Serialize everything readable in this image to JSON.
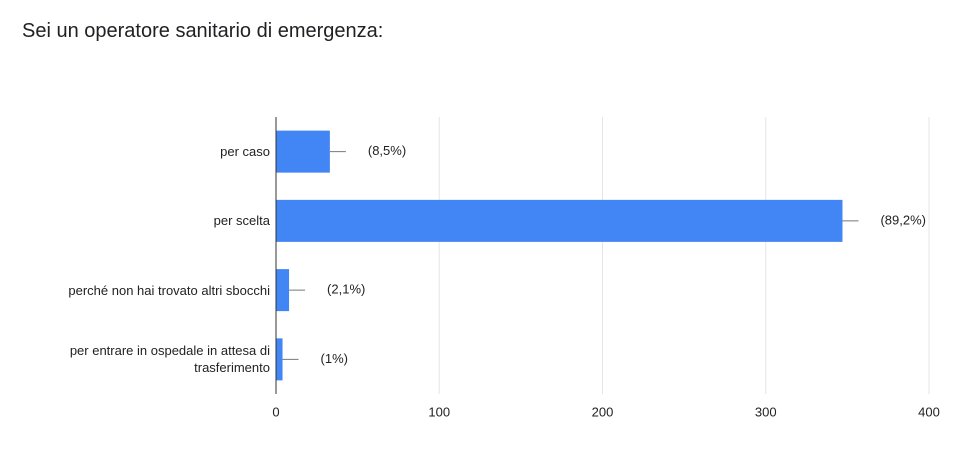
{
  "chart_data": {
    "type": "hbar",
    "title": "Sei un operatore sanitario di emergenza:",
    "categories": [
      "per caso",
      "per scelta",
      "perché non hai trovato altri sbocchi",
      "per entrare in ospedale in attesa di trasferimento"
    ],
    "values": [
      33,
      347,
      8,
      4
    ],
    "shares": [
      8.5,
      89.2,
      2.1,
      1
    ],
    "share_labels": [
      "(8,5%)",
      "(89,2%)",
      "(2,1%)",
      "(1%)"
    ],
    "color": "#4285f4",
    "xlim": [
      0,
      400
    ],
    "xticks": [
      0,
      100,
      200,
      300,
      400
    ],
    "grid": true
  }
}
